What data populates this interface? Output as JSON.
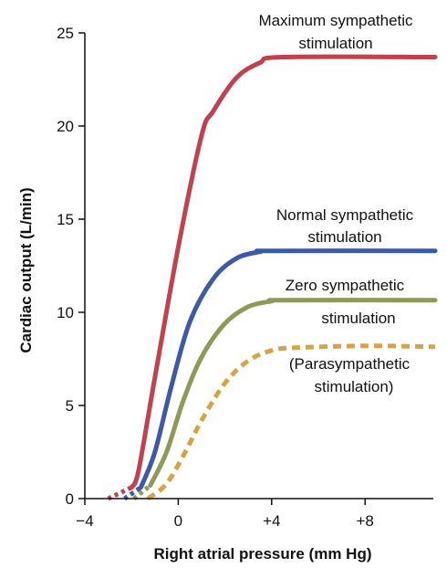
{
  "chart_data": {
    "type": "line",
    "title": "",
    "xlabel": "Right atrial pressure (mm Hg)",
    "ylabel": "Cardiac output (L/min)",
    "xlim": [
      -4,
      11
    ],
    "ylim": [
      0,
      25
    ],
    "x_ticks": [
      {
        "value": -4,
        "label": "−4"
      },
      {
        "value": 0,
        "label": "0"
      },
      {
        "value": 4,
        "label": "+4"
      },
      {
        "value": 8,
        "label": "+8"
      }
    ],
    "y_ticks": [
      {
        "value": 0,
        "label": "0"
      },
      {
        "value": 5,
        "label": "5"
      },
      {
        "value": 10,
        "label": "10"
      },
      {
        "value": 15,
        "label": "15"
      },
      {
        "value": 20,
        "label": "20"
      },
      {
        "value": 25,
        "label": "25"
      }
    ],
    "grid": false,
    "series": [
      {
        "name": "Maximum sympathetic stimulation",
        "color": "#c0424f",
        "dash_below": 0.8,
        "points": [
          [
            -3,
            0
          ],
          [
            -2,
            0.6
          ],
          [
            -1.7,
            1.5
          ],
          [
            -1,
            6.5
          ],
          [
            0,
            13.5
          ],
          [
            1,
            19.5
          ],
          [
            1.5,
            20.8
          ],
          [
            2.5,
            22.6
          ],
          [
            3.5,
            23.4
          ],
          [
            4.5,
            23.7
          ],
          [
            11,
            23.7
          ]
        ]
      },
      {
        "name": "Normal sympathetic stimulation",
        "color": "#3e5aa4",
        "dash_below": 0.8,
        "points": [
          [
            -2.3,
            0
          ],
          [
            -1.6,
            0.6
          ],
          [
            -1,
            2.5
          ],
          [
            -0.3,
            6
          ],
          [
            0.5,
            9.5
          ],
          [
            1.5,
            11.8
          ],
          [
            2.5,
            12.9
          ],
          [
            3.5,
            13.25
          ],
          [
            4,
            13.3
          ],
          [
            11,
            13.3
          ]
        ]
      },
      {
        "name": "Zero sympathetic stimulation",
        "color": "#8d9a5a",
        "dash_below": 0.8,
        "points": [
          [
            -1.9,
            0
          ],
          [
            -1.2,
            0.7
          ],
          [
            -0.5,
            2.5
          ],
          [
            0.2,
            5.2
          ],
          [
            1,
            7.6
          ],
          [
            2,
            9.4
          ],
          [
            3,
            10.3
          ],
          [
            4,
            10.6
          ],
          [
            4.5,
            10.65
          ],
          [
            11,
            10.65
          ]
        ]
      },
      {
        "name": "(Parasympathetic stimulation)",
        "color": "#d4a548",
        "dashed": true,
        "points": [
          [
            -1.3,
            0
          ],
          [
            -0.5,
            0.8
          ],
          [
            0.3,
            2.5
          ],
          [
            1,
            4.2
          ],
          [
            2,
            6.2
          ],
          [
            3,
            7.4
          ],
          [
            4,
            7.95
          ],
          [
            5,
            8.1
          ],
          [
            8,
            8.2
          ],
          [
            11,
            8.15
          ]
        ]
      }
    ],
    "annotations": [
      {
        "id": "max",
        "lines": [
          "Maximum sympathetic",
          "stimulation"
        ]
      },
      {
        "id": "normal",
        "lines": [
          "Normal sympathetic",
          "stimulation"
        ]
      },
      {
        "id": "zero",
        "lines": [
          "Zero sympathetic",
          "stimulation"
        ]
      },
      {
        "id": "para",
        "lines": [
          "(Parasympathetic",
          "stimulation)"
        ]
      }
    ]
  }
}
